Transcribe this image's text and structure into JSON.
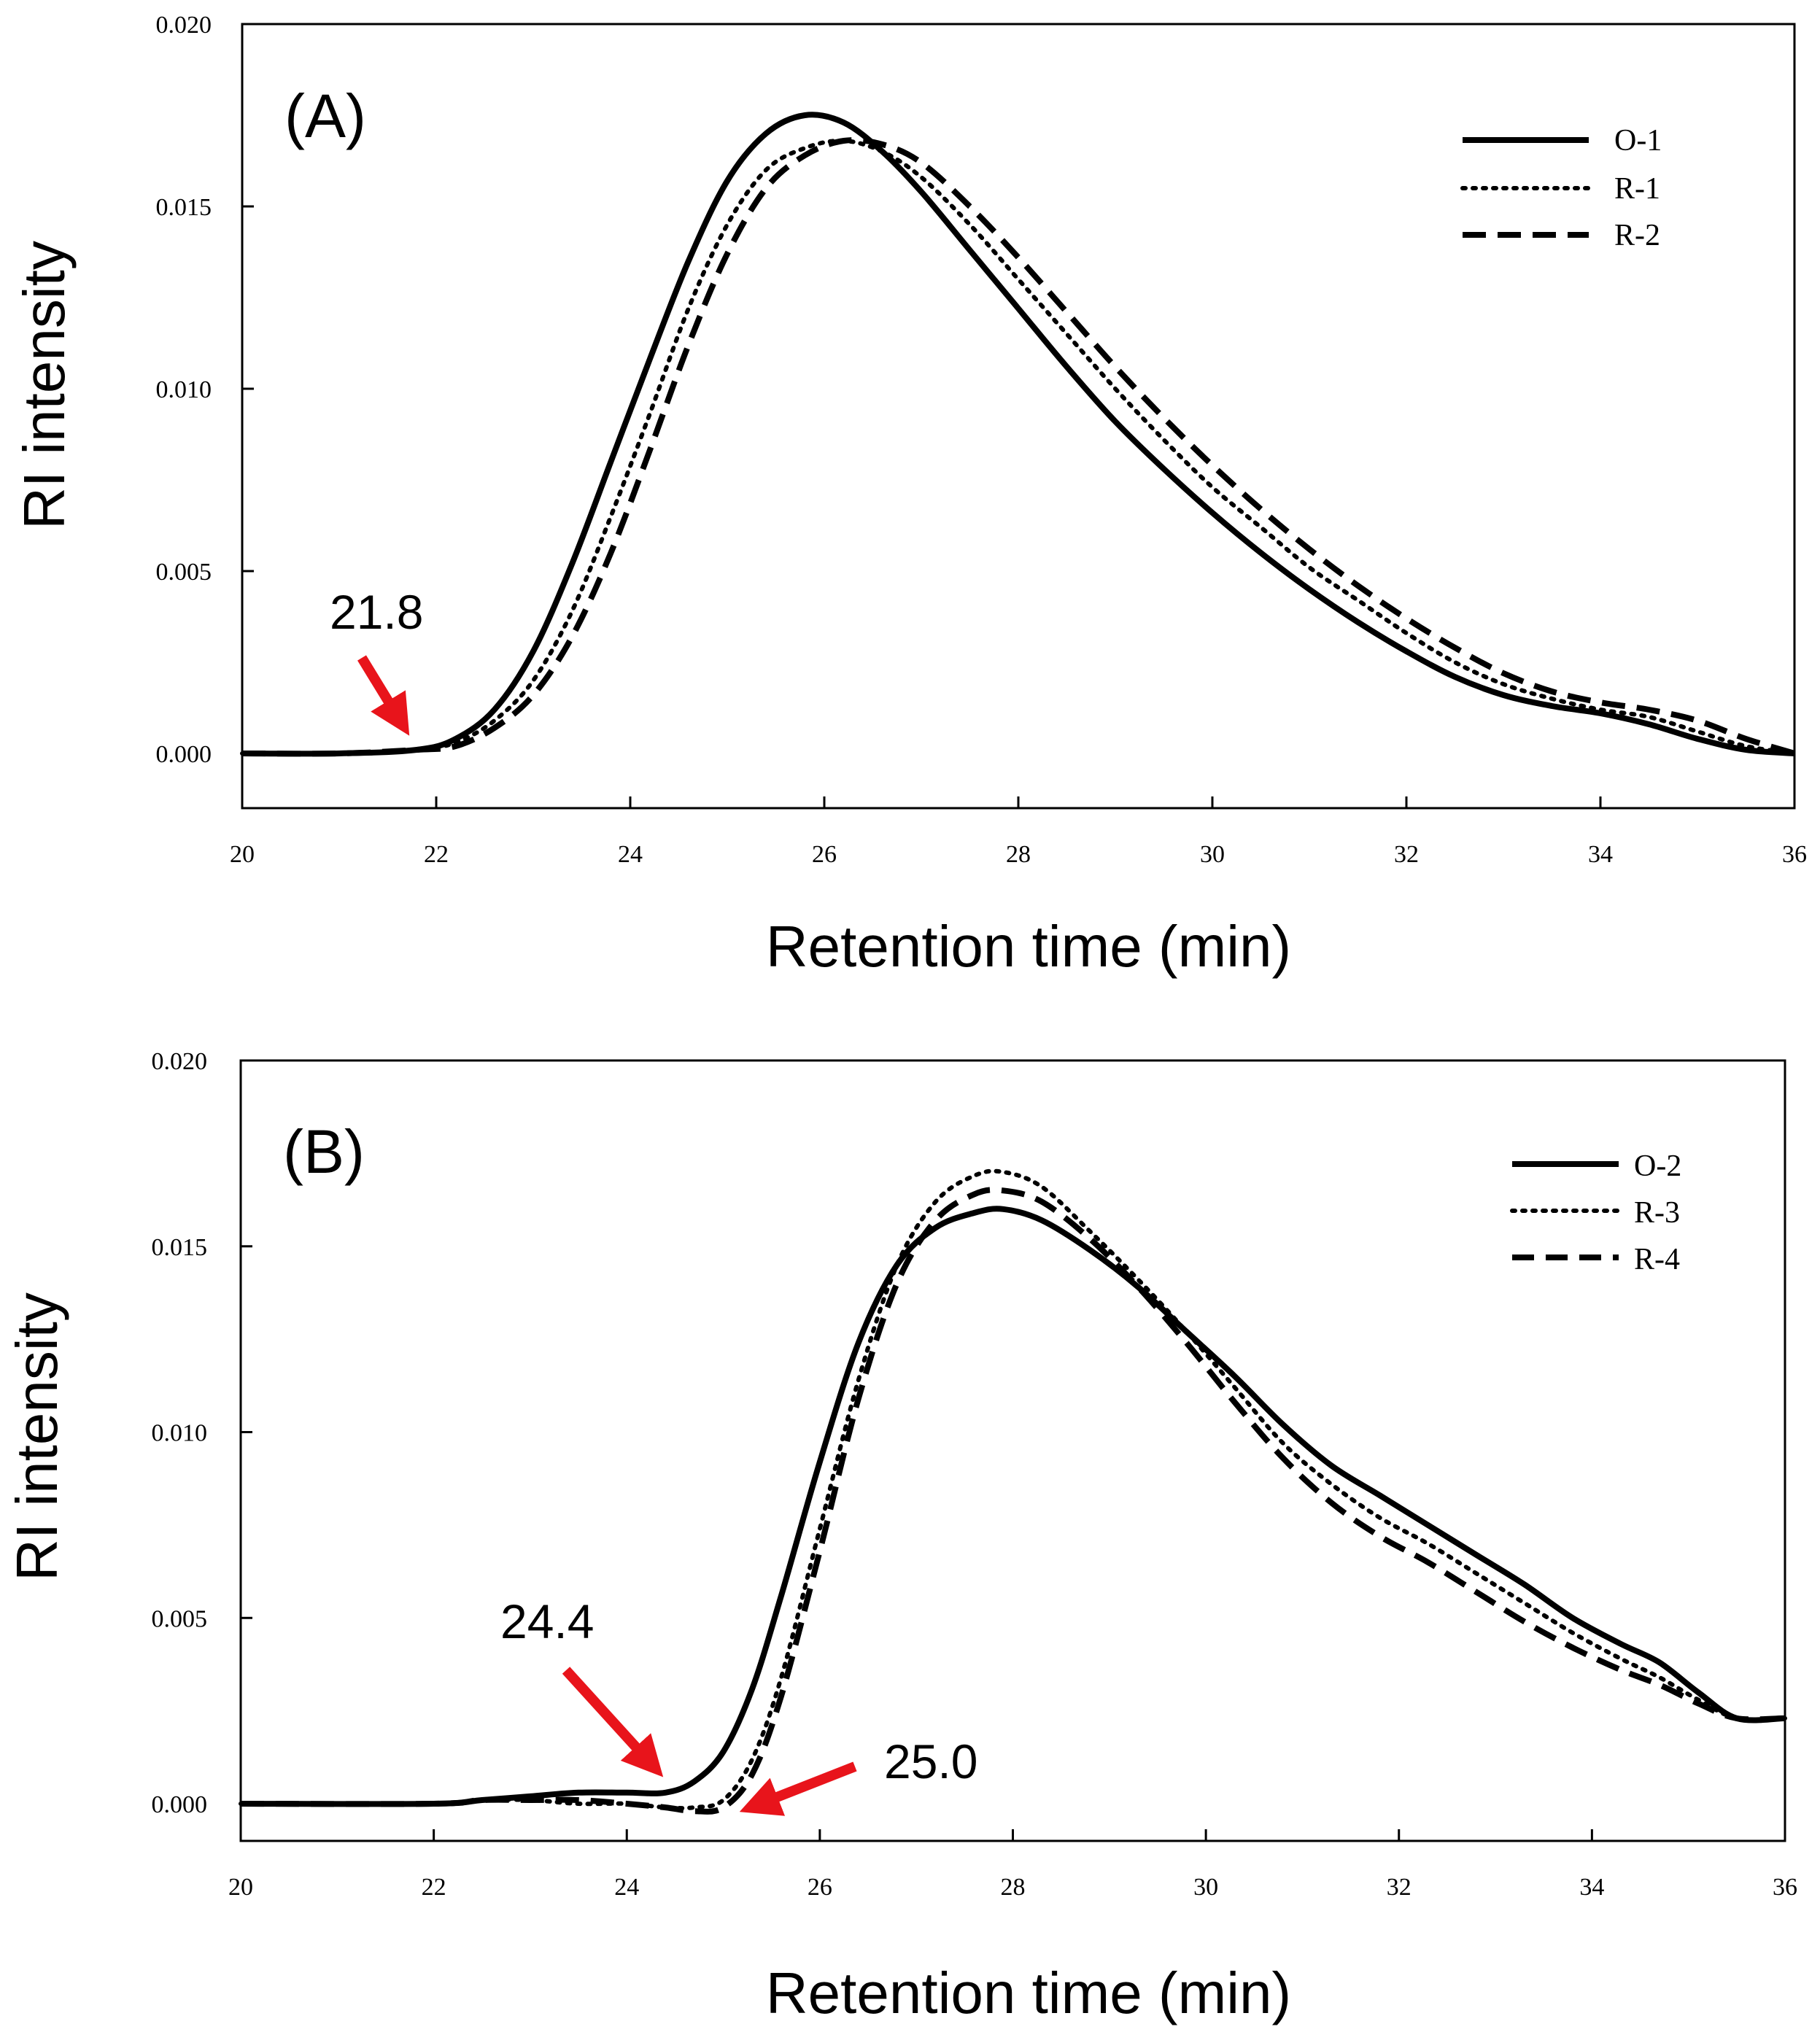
{
  "chart_data": [
    {
      "type": "line",
      "panel_label": "(A)",
      "xlabel": "Retention time (min)",
      "ylabel": "RI intensity",
      "xlim": [
        20,
        36
      ],
      "ylim": [
        -0.0015,
        0.02
      ],
      "xticks": [
        20,
        22,
        24,
        26,
        28,
        30,
        32,
        34,
        36
      ],
      "xtick_labels": [
        "20",
        "22",
        "24",
        "26",
        "28",
        "30",
        "32",
        "34",
        "36"
      ],
      "yticks": [
        0.0,
        0.005,
        0.01,
        0.015,
        0.02
      ],
      "ytick_labels": [
        "0.000",
        "0.005",
        "0.010",
        "0.015",
        "0.020"
      ],
      "grid": false,
      "legend_position": "top-right",
      "series": [
        {
          "name": "O-1",
          "style": "solid",
          "x": [
            20,
            21,
            21.8,
            22.2,
            22.6,
            23,
            23.4,
            23.8,
            24.2,
            24.6,
            25,
            25.4,
            25.8,
            26.2,
            26.6,
            27,
            27.5,
            28,
            28.5,
            29,
            29.5,
            30,
            30.5,
            31,
            31.5,
            32,
            32.5,
            33,
            33.5,
            34,
            34.5,
            35,
            35.5,
            36
          ],
          "y": [
            0,
            0,
            0.0001,
            0.0004,
            0.0012,
            0.0028,
            0.0052,
            0.008,
            0.0108,
            0.0135,
            0.0157,
            0.017,
            0.0175,
            0.0173,
            0.0165,
            0.0154,
            0.0138,
            0.0122,
            0.0106,
            0.0091,
            0.0078,
            0.0066,
            0.0055,
            0.0045,
            0.0036,
            0.0028,
            0.0021,
            0.0016,
            0.0013,
            0.0011,
            0.0008,
            0.0004,
            0.0001,
            0
          ]
        },
        {
          "name": "R-1",
          "style": "dotted",
          "x": [
            20,
            21,
            21.8,
            22.2,
            22.6,
            23,
            23.4,
            23.8,
            24.2,
            24.6,
            25,
            25.4,
            25.8,
            26.2,
            26.6,
            27,
            27.5,
            28,
            28.5,
            29,
            29.5,
            30,
            30.5,
            31,
            31.5,
            32,
            32.5,
            33,
            33.5,
            34,
            34.5,
            35,
            35.5,
            36
          ],
          "y": [
            0,
            0,
            0.0001,
            0.0003,
            0.0009,
            0.002,
            0.0039,
            0.0065,
            0.0093,
            0.0122,
            0.0145,
            0.016,
            0.0166,
            0.0168,
            0.0165,
            0.0158,
            0.0145,
            0.013,
            0.0115,
            0.01,
            0.0086,
            0.0073,
            0.0062,
            0.0051,
            0.0042,
            0.0033,
            0.0025,
            0.0019,
            0.0015,
            0.0012,
            0.001,
            0.0006,
            0.0002,
            0
          ]
        },
        {
          "name": "R-2",
          "style": "dashed",
          "x": [
            20,
            21,
            21.8,
            22.2,
            22.6,
            23,
            23.4,
            23.8,
            24.2,
            24.6,
            25,
            25.4,
            25.8,
            26.2,
            26.6,
            27,
            27.5,
            28,
            28.5,
            29,
            29.5,
            30,
            30.5,
            31,
            31.5,
            32,
            32.5,
            33,
            33.5,
            34,
            34.5,
            35,
            35.5,
            36
          ],
          "y": [
            0,
            0,
            0.0001,
            0.0002,
            0.0007,
            0.0016,
            0.0032,
            0.0055,
            0.0083,
            0.0112,
            0.0137,
            0.0155,
            0.0164,
            0.0168,
            0.0167,
            0.0162,
            0.015,
            0.0136,
            0.0121,
            0.0106,
            0.0092,
            0.0079,
            0.0067,
            0.0056,
            0.0046,
            0.0037,
            0.0029,
            0.0022,
            0.0017,
            0.0014,
            0.0012,
            0.0009,
            0.0004,
            0
          ]
        }
      ],
      "annotations": [
        {
          "text": "21.8",
          "x": 21.8,
          "y": 0.0001,
          "color": "#e8141b"
        }
      ]
    },
    {
      "type": "line",
      "panel_label": "(B)",
      "xlabel": "Retention time (min)",
      "ylabel": "RI intensity",
      "xlim": [
        20,
        36
      ],
      "ylim": [
        -0.001,
        0.02
      ],
      "xticks": [
        20,
        22,
        24,
        26,
        28,
        30,
        32,
        34,
        36
      ],
      "xtick_labels": [
        "20",
        "22",
        "24",
        "26",
        "28",
        "30",
        "32",
        "34",
        "36"
      ],
      "yticks": [
        0.0,
        0.005,
        0.01,
        0.015,
        0.02
      ],
      "ytick_labels": [
        "0.000",
        "0.005",
        "0.010",
        "0.015",
        "0.020"
      ],
      "grid": false,
      "legend_position": "top-right",
      "series": [
        {
          "name": "O-2",
          "style": "solid",
          "x": [
            20,
            22,
            22.5,
            23,
            23.5,
            24,
            24.4,
            24.7,
            25,
            25.3,
            25.6,
            26,
            26.4,
            26.8,
            27.2,
            27.6,
            27.9,
            28.3,
            28.8,
            29.3,
            29.8,
            30.3,
            30.8,
            31.3,
            31.8,
            32.3,
            32.8,
            33.3,
            33.8,
            34.3,
            34.7,
            35.1,
            35.5,
            36
          ],
          "y": [
            0,
            0,
            0.0001,
            0.0002,
            0.0003,
            0.0003,
            0.0003,
            0.0006,
            0.0014,
            0.0031,
            0.0056,
            0.0092,
            0.0124,
            0.0145,
            0.0155,
            0.0159,
            0.016,
            0.0157,
            0.0149,
            0.0139,
            0.0127,
            0.0115,
            0.0102,
            0.0091,
            0.0083,
            0.0075,
            0.0067,
            0.0059,
            0.005,
            0.0043,
            0.0038,
            0.003,
            0.0023,
            0.0023
          ]
        },
        {
          "name": "R-3",
          "style": "dotted",
          "x": [
            20,
            22,
            22.5,
            23,
            23.5,
            24,
            24.4,
            24.7,
            25,
            25.3,
            25.6,
            26,
            26.4,
            26.8,
            27.2,
            27.6,
            27.9,
            28.3,
            28.8,
            29.3,
            29.8,
            30.3,
            30.8,
            31.3,
            31.8,
            32.3,
            32.8,
            33.3,
            33.8,
            34.3,
            34.7,
            35.1,
            35.5,
            36
          ],
          "y": [
            0,
            0,
            0.0001,
            0.0001,
            0,
            0,
            -0.0001,
            -0.0001,
            0.0001,
            0.0012,
            0.0034,
            0.0074,
            0.0114,
            0.0145,
            0.0162,
            0.0169,
            0.017,
            0.0166,
            0.0154,
            0.0141,
            0.0127,
            0.0112,
            0.0097,
            0.0086,
            0.0077,
            0.007,
            0.0062,
            0.0054,
            0.0046,
            0.0039,
            0.0034,
            0.0028,
            0.0023,
            0.0023
          ]
        },
        {
          "name": "R-4",
          "style": "dashed",
          "x": [
            20,
            22,
            22.5,
            23,
            23.5,
            24,
            24.4,
            24.7,
            25,
            25.3,
            25.6,
            26,
            26.4,
            26.8,
            27.2,
            27.6,
            27.9,
            28.3,
            28.8,
            29.3,
            29.8,
            30.3,
            30.8,
            31.3,
            31.8,
            32.3,
            32.8,
            33.3,
            33.8,
            34.3,
            34.7,
            35.1,
            35.5,
            36
          ],
          "y": [
            0,
            0,
            0.0001,
            0.0001,
            0.0001,
            0,
            -0.0001,
            -0.0002,
            -0.0001,
            0.0008,
            0.0029,
            0.0068,
            0.0109,
            0.014,
            0.0157,
            0.0164,
            0.0165,
            0.0162,
            0.0152,
            0.0139,
            0.0124,
            0.0108,
            0.0093,
            0.0081,
            0.0072,
            0.0065,
            0.0057,
            0.0049,
            0.0042,
            0.0036,
            0.0032,
            0.0027,
            0.0023,
            0.0023
          ]
        }
      ],
      "annotations": [
        {
          "text": "24.4",
          "x": 24.4,
          "y": 0.0003,
          "color": "#e8141b"
        },
        {
          "text": "25.0",
          "x": 25.0,
          "y": 0.0,
          "color": "#e8141b"
        }
      ]
    }
  ]
}
